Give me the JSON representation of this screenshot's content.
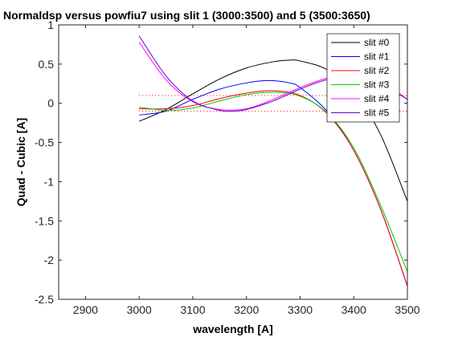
{
  "chart_data": {
    "type": "line",
    "title": "Normaldsp versus powfiu7 using slit 1 (3000:3500) and 5 (3500:3650)",
    "xlabel": "wavelength [A]",
    "ylabel": "Quad - Cubic  [A]",
    "xlim": [
      2850,
      3500
    ],
    "ylim": [
      -2.5,
      1
    ],
    "xticks": [
      2900,
      3000,
      3100,
      3200,
      3300,
      3400,
      3500
    ],
    "yticks": [
      1,
      0.5,
      0,
      -0.5,
      -1,
      -1.5,
      -2,
      -2.5
    ],
    "xtick_labels": [
      "2900",
      "3000",
      "3100",
      "3200",
      "3300",
      "3400",
      "3500"
    ],
    "ytick_labels": [
      "1",
      "0.5",
      "0",
      "-0.5",
      "-1",
      "-1.5",
      "-2",
      "-2.5"
    ],
    "grid": false,
    "legend_position": "top-right",
    "series": [
      {
        "name": "slit #0",
        "color": "#000000",
        "x": [
          3000,
          3050,
          3100,
          3150,
          3200,
          3250,
          3280,
          3300,
          3350,
          3400,
          3450,
          3500
        ],
        "y": [
          -0.23,
          -0.08,
          0.12,
          0.31,
          0.45,
          0.53,
          0.55,
          0.54,
          0.43,
          0.15,
          -0.4,
          -1.25
        ]
      },
      {
        "name": "slit #1",
        "color": "#0000ff",
        "x": [
          3000,
          3050,
          3100,
          3150,
          3200,
          3240,
          3280,
          3300,
          3350,
          3400,
          3450,
          3500
        ],
        "y": [
          -0.15,
          -0.1,
          0.05,
          0.18,
          0.26,
          0.29,
          0.26,
          0.2,
          -0.1,
          -0.6,
          -1.35,
          -2.33
        ]
      },
      {
        "name": "slit #2",
        "color": "#ff0000",
        "x": [
          3000,
          3050,
          3100,
          3150,
          3200,
          3250,
          3300,
          3350,
          3400,
          3450,
          3500
        ],
        "y": [
          -0.07,
          -0.07,
          -0.03,
          0.06,
          0.13,
          0.16,
          0.1,
          -0.13,
          -0.6,
          -1.35,
          -2.33
        ]
      },
      {
        "name": "slit #3",
        "color": "#00cc00",
        "x": [
          3000,
          3050,
          3100,
          3150,
          3200,
          3250,
          3300,
          3350,
          3400,
          3450,
          3500
        ],
        "y": [
          -0.05,
          -0.09,
          -0.06,
          0.03,
          0.11,
          0.14,
          0.09,
          -0.12,
          -0.57,
          -1.3,
          -2.15
        ]
      },
      {
        "name": "slit #4",
        "color": "#ff00ff",
        "x": [
          3000,
          3050,
          3100,
          3150,
          3200,
          3250,
          3300,
          3350,
          3400,
          3450,
          3500
        ],
        "y": [
          0.78,
          0.3,
          0.02,
          -0.08,
          -0.07,
          0.05,
          0.2,
          0.32,
          0.35,
          0.27,
          0.05
        ]
      },
      {
        "name": "slit #5",
        "color": "#6600cc",
        "x": [
          3000,
          3050,
          3100,
          3150,
          3175,
          3200,
          3250,
          3300,
          3350,
          3400,
          3450,
          3500
        ],
        "y": [
          0.86,
          0.35,
          0.03,
          -0.09,
          -0.1,
          -0.08,
          0.03,
          0.18,
          0.3,
          0.33,
          0.25,
          0.05
        ]
      }
    ],
    "reference_lines": [
      {
        "color": "#ff0000",
        "y": 0.1,
        "x_range": [
          3000,
          3500
        ]
      },
      {
        "color": "#ff0000",
        "y": -0.1,
        "x_range": [
          3000,
          3500
        ]
      }
    ]
  }
}
